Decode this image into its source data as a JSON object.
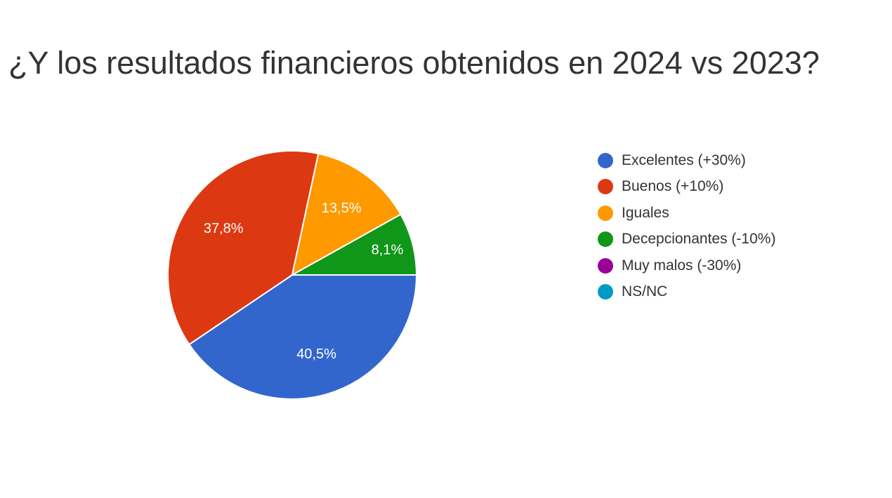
{
  "chart_data": {
    "type": "pie",
    "title": "¿Y los resultados financieros obtenidos en 2024 vs 2023?",
    "legend_position": "right",
    "slices": [
      {
        "label": "Excelentes (+30%)",
        "value": 40.5,
        "display": "40,5%",
        "color": "#3366cc"
      },
      {
        "label": "Buenos (+10%)",
        "value": 37.8,
        "display": "37,8%",
        "color": "#dc3912"
      },
      {
        "label": "Iguales",
        "value": 13.5,
        "display": "13,5%",
        "color": "#ff9900"
      },
      {
        "label": "Decepcionantes (-10%)",
        "value": 8.1,
        "display": "8,1%",
        "color": "#109618"
      },
      {
        "label": "Muy malos (-30%)",
        "value": 0,
        "display": "",
        "color": "#990099"
      },
      {
        "label": "NS/NC",
        "value": 0,
        "display": "",
        "color": "#0099c6"
      }
    ]
  }
}
